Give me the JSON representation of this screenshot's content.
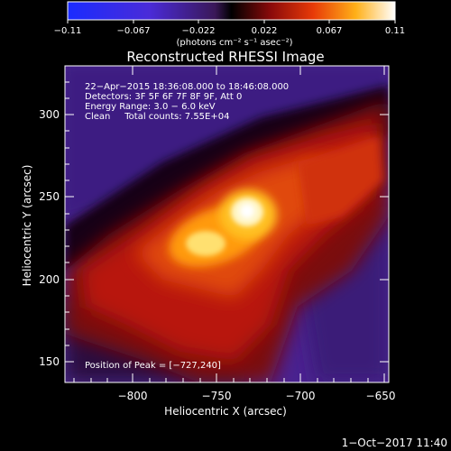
{
  "colorbar": {
    "ticks": [
      "−0.11",
      "−0.067",
      "−0.022",
      "0.022",
      "0.067",
      "0.11"
    ],
    "range": [
      -0.11,
      0.11
    ],
    "unit_label": "(photons cm⁻² s⁻¹ asec⁻²)"
  },
  "plot": {
    "title": "Reconstructed RHESSI Image",
    "info_lines": [
      "22−Apr−2015 18:36:08.000 to 18:46:08.000",
      "Detectors: 3F 5F 6F 7F 8F 9F, Att 0",
      "Energy Range: 3.0 − 6.0 keV",
      "Clean     Total counts: 7.55E+04"
    ],
    "peak_label": "Position of Peak = [−727,240]",
    "xlabel": "Heliocentric X (arcsec)",
    "ylabel": "Heliocentric Y (arcsec)",
    "x_ticks": [
      "−800",
      "−750",
      "−700",
      "−650"
    ],
    "y_ticks": [
      "150",
      "200",
      "250",
      "300"
    ],
    "xlim": [
      -838,
      -646
    ],
    "ylim": [
      134,
      330
    ],
    "peak_position": [
      -727,
      240
    ]
  },
  "footer": {
    "timestamp": "1−Oct−2017 11:40"
  }
}
